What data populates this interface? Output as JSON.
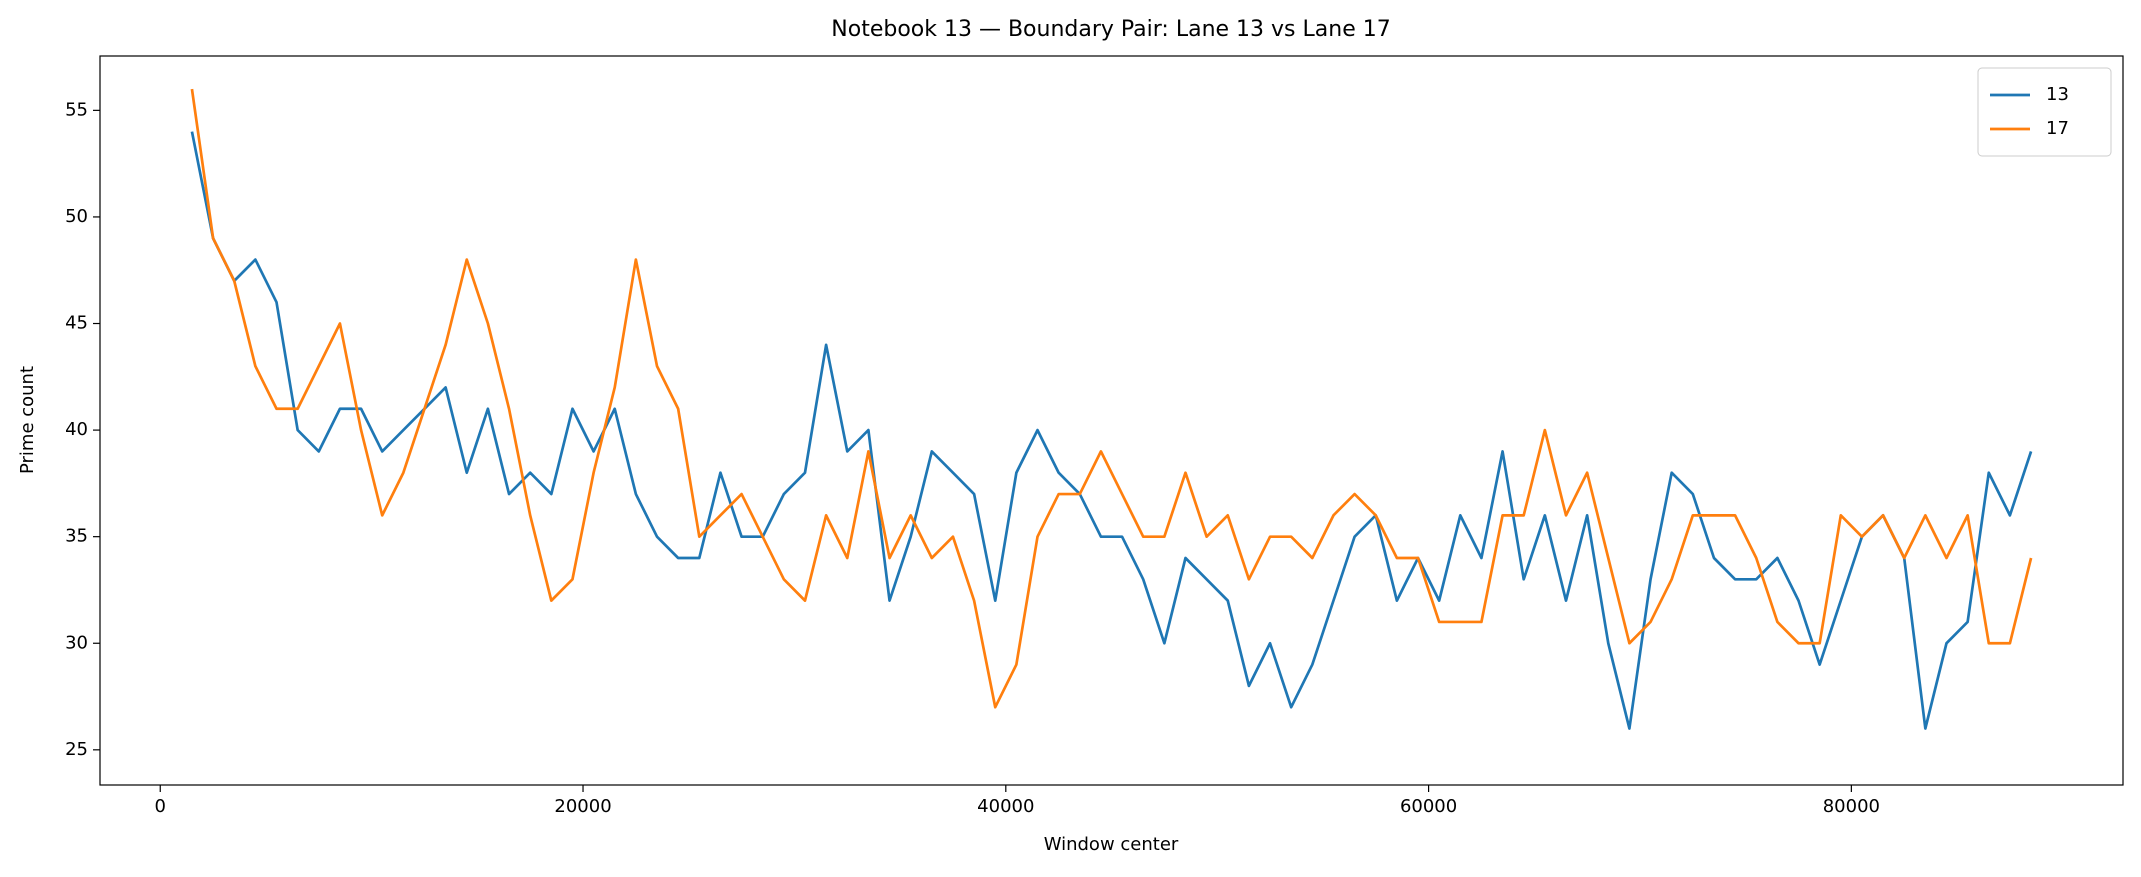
{
  "chart_data": {
    "type": "line",
    "title": "Notebook 13 — Boundary Pair: Lane 13 vs Lane 17",
    "x_label": "Window center",
    "y_label": "Prime count",
    "x": [
      1500,
      2500,
      3500,
      4500,
      5500,
      6500,
      7500,
      8500,
      9500,
      10500,
      11500,
      12500,
      13500,
      14500,
      15500,
      16500,
      17500,
      18500,
      19500,
      20500,
      21500,
      22500,
      23500,
      24500,
      25500,
      26500,
      27500,
      28500,
      29500,
      30500,
      31500,
      32500,
      33500,
      34500,
      35500,
      36500,
      37500,
      38500,
      39500,
      40500,
      41500,
      42500,
      43500,
      44500,
      45500,
      46500,
      47500,
      48500,
      49500,
      50500,
      51500,
      52500,
      53500,
      54500,
      55500,
      56500,
      57500,
      58500,
      59500,
      60500,
      61500,
      62500,
      63500,
      64500,
      65500,
      66500,
      67500,
      68500,
      69500,
      70500,
      71500,
      72500,
      73500,
      74500,
      75500,
      76500,
      77500,
      78500,
      79500,
      80500,
      81500,
      82500,
      83500,
      84500,
      85500,
      86500,
      87500,
      88500
    ],
    "series": [
      {
        "name": "13",
        "color": "#1f77b4",
        "values": [
          54,
          49,
          47,
          48,
          46,
          40,
          39,
          41,
          41,
          39,
          40,
          41,
          42,
          38,
          41,
          37,
          38,
          37,
          41,
          39,
          41,
          37,
          35,
          34,
          34,
          38,
          35,
          35,
          37,
          38,
          44,
          39,
          40,
          32,
          35,
          39,
          38,
          37,
          32,
          38,
          40,
          38,
          37,
          35,
          35,
          33,
          30,
          34,
          33,
          32,
          28,
          30,
          27,
          29,
          32,
          35,
          36,
          32,
          34,
          32,
          36,
          34,
          39,
          33,
          36,
          32,
          36,
          30,
          26,
          33,
          38,
          37,
          34,
          33,
          33,
          34,
          32,
          29,
          32,
          35,
          36,
          34,
          26,
          30,
          31,
          38,
          36,
          39
        ]
      },
      {
        "name": "17",
        "color": "#ff7f0e",
        "values": [
          56,
          49,
          47,
          43,
          41,
          41,
          43,
          45,
          40,
          36,
          38,
          41,
          44,
          48,
          45,
          41,
          36,
          32,
          33,
          38,
          42,
          48,
          43,
          41,
          35,
          36,
          37,
          35,
          33,
          32,
          36,
          34,
          39,
          34,
          36,
          34,
          35,
          32,
          27,
          29,
          35,
          37,
          37,
          39,
          37,
          35,
          35,
          38,
          35,
          36,
          33,
          35,
          35,
          34,
          36,
          37,
          36,
          34,
          34,
          31,
          31,
          31,
          36,
          36,
          40,
          36,
          38,
          34,
          30,
          31,
          33,
          36,
          36,
          36,
          34,
          31,
          30,
          30,
          36,
          35,
          36,
          34,
          36,
          34,
          36,
          30,
          30,
          34
        ]
      }
    ],
    "xlim": [
      -2850,
      92850
    ],
    "ylim": [
      23.35,
      57.55
    ],
    "xticks": [
      0,
      20000,
      40000,
      60000,
      80000
    ],
    "yticks": [
      25,
      30,
      35,
      40,
      45,
      50,
      55
    ],
    "legend": "upper right"
  }
}
